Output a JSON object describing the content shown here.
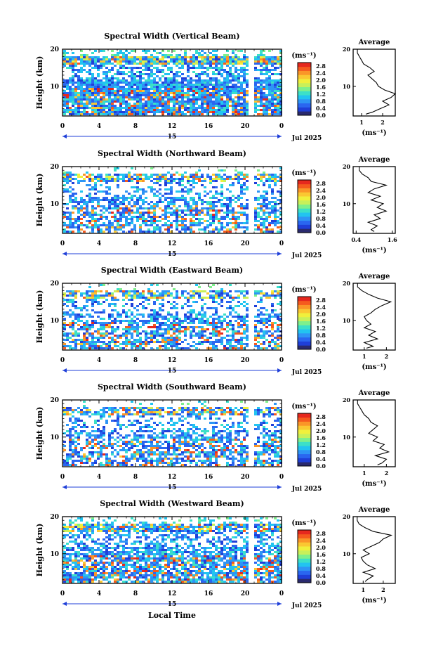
{
  "figure": {
    "unit_label": "(ms⁻¹)",
    "xlabel": "Local Time",
    "date_label": "Jul 2025",
    "day_label": "15",
    "avg_title": "Average",
    "colorbar_ticks": [
      "2.8",
      "2.4",
      "2.0",
      "1.6",
      "1.2",
      "0.8",
      "0.4",
      "0.0"
    ],
    "colorscale": [
      "#2a2a6e",
      "#1f3fd8",
      "#2a66f0",
      "#2e95f5",
      "#22c4f0",
      "#3ce0c8",
      "#7ef08c",
      "#c8f05a",
      "#f0f03c",
      "#fac832",
      "#fa9628",
      "#f55a1e",
      "#e6281e"
    ]
  },
  "chart_data": [
    {
      "type": "heatmap",
      "title": "Spectral Width (Vertical Beam)",
      "ylabel": "Height (km)",
      "x_ticks": [
        "0",
        "4",
        "8",
        "12",
        "16",
        "20",
        "0"
      ],
      "y_ticks": [
        "10",
        "20"
      ],
      "xlim": [
        0,
        24
      ],
      "ylim": [
        2,
        20
      ],
      "clim": [
        0,
        3.0
      ],
      "average": {
        "xlabel": "(ms⁻¹)",
        "x_ticks": [
          "1",
          "2"
        ],
        "xlim": [
          0.6,
          2.6
        ],
        "profile": [
          [
            2.5,
            1.2
          ],
          [
            3,
            1.5
          ],
          [
            4,
            1.9
          ],
          [
            5,
            2.3
          ],
          [
            6,
            2.0
          ],
          [
            7,
            2.4
          ],
          [
            8,
            2.6
          ],
          [
            9,
            2.1
          ],
          [
            10,
            1.8
          ],
          [
            11,
            1.7
          ],
          [
            12,
            1.5
          ],
          [
            13,
            1.3
          ],
          [
            14,
            1.6
          ],
          [
            15,
            1.4
          ],
          [
            16,
            1.1
          ],
          [
            17,
            1.0
          ],
          [
            18,
            0.9
          ],
          [
            19,
            0.8
          ],
          [
            20,
            0.8
          ]
        ]
      }
    },
    {
      "type": "heatmap",
      "title": "Spectral Width (Northward Beam)",
      "ylabel": "Height (km)",
      "x_ticks": [
        "0",
        "4",
        "8",
        "12",
        "16",
        "20",
        "0"
      ],
      "y_ticks": [
        "10",
        "20"
      ],
      "xlim": [
        0,
        24
      ],
      "ylim": [
        2,
        20
      ],
      "clim": [
        0,
        3.0
      ],
      "average": {
        "xlabel": "(ms⁻¹)",
        "x_ticks": [
          "0.4",
          "1.6"
        ],
        "xlim": [
          0.3,
          1.7
        ],
        "profile": [
          [
            2.5,
            1.0
          ],
          [
            3,
            0.9
          ],
          [
            4,
            1.1
          ],
          [
            5,
            0.8
          ],
          [
            6,
            1.2
          ],
          [
            7,
            1.0
          ],
          [
            8,
            1.4
          ],
          [
            9,
            1.1
          ],
          [
            10,
            1.3
          ],
          [
            11,
            0.9
          ],
          [
            12,
            1.2
          ],
          [
            13,
            0.8
          ],
          [
            14,
            1.0
          ],
          [
            15,
            1.4
          ],
          [
            16,
            0.9
          ],
          [
            17,
            0.8
          ],
          [
            18,
            0.6
          ],
          [
            19,
            0.5
          ],
          [
            20,
            0.5
          ]
        ]
      }
    },
    {
      "type": "heatmap",
      "title": "Spectral Width (Eastward Beam)",
      "ylabel": "Height (km)",
      "x_ticks": [
        "0",
        "4",
        "8",
        "12",
        "16",
        "20",
        "0"
      ],
      "y_ticks": [
        "10",
        "20"
      ],
      "xlim": [
        0,
        24
      ],
      "ylim": [
        2,
        20
      ],
      "clim": [
        0,
        3.0
      ],
      "average": {
        "xlabel": "(ms⁻¹)",
        "x_ticks": [
          "1",
          "2"
        ],
        "xlim": [
          0.5,
          2.4
        ],
        "profile": [
          [
            2.5,
            1.1
          ],
          [
            3,
            1.4
          ],
          [
            4,
            1.0
          ],
          [
            5,
            1.6
          ],
          [
            6,
            1.2
          ],
          [
            7,
            1.5
          ],
          [
            8,
            1.0
          ],
          [
            9,
            1.3
          ],
          [
            10,
            1.1
          ],
          [
            11,
            1.0
          ],
          [
            12,
            1.3
          ],
          [
            13,
            1.5
          ],
          [
            14,
            1.8
          ],
          [
            15,
            2.2
          ],
          [
            16,
            1.6
          ],
          [
            17,
            1.2
          ],
          [
            18,
            0.9
          ],
          [
            19,
            0.7
          ],
          [
            20,
            0.7
          ]
        ]
      }
    },
    {
      "type": "heatmap",
      "title": "Spectral Width (Southward Beam)",
      "ylabel": "Height (km)",
      "x_ticks": [
        "0",
        "4",
        "8",
        "12",
        "16",
        "20",
        "0"
      ],
      "y_ticks": [
        "10",
        "20"
      ],
      "xlim": [
        0,
        24
      ],
      "ylim": [
        2,
        20
      ],
      "clim": [
        0,
        3.0
      ],
      "average": {
        "xlabel": "(ms⁻¹)",
        "x_ticks": [
          "1",
          "2"
        ],
        "xlim": [
          0.5,
          2.4
        ],
        "profile": [
          [
            2.5,
            1.6
          ],
          [
            3,
            1.8
          ],
          [
            4,
            2.0
          ],
          [
            5,
            1.5
          ],
          [
            6,
            2.1
          ],
          [
            7,
            1.7
          ],
          [
            8,
            1.9
          ],
          [
            9,
            1.4
          ],
          [
            10,
            1.6
          ],
          [
            11,
            1.2
          ],
          [
            12,
            1.4
          ],
          [
            13,
            1.6
          ],
          [
            14,
            1.3
          ],
          [
            15,
            1.2
          ],
          [
            16,
            1.0
          ],
          [
            17,
            0.9
          ],
          [
            18,
            0.8
          ],
          [
            19,
            0.7
          ],
          [
            20,
            0.7
          ]
        ]
      }
    },
    {
      "type": "heatmap",
      "title": "Spectral Width (Westward Beam)",
      "ylabel": "Height (km)",
      "x_ticks": [
        "0",
        "4",
        "8",
        "12",
        "16",
        "20",
        "0"
      ],
      "y_ticks": [
        "10",
        "20"
      ],
      "xlim": [
        0,
        24
      ],
      "ylim": [
        2,
        20
      ],
      "clim": [
        0,
        3.0
      ],
      "average": {
        "xlabel": "(ms⁻¹)",
        "x_ticks": [
          "1",
          "2"
        ],
        "xlim": [
          0.5,
          2.6
        ],
        "profile": [
          [
            2.5,
            1.1
          ],
          [
            3,
            1.2
          ],
          [
            4,
            1.5
          ],
          [
            5,
            1.0
          ],
          [
            6,
            1.6
          ],
          [
            7,
            1.2
          ],
          [
            8,
            1.0
          ],
          [
            9,
            0.9
          ],
          [
            10,
            1.3
          ],
          [
            11,
            1.0
          ],
          [
            12,
            1.4
          ],
          [
            13,
            1.8
          ],
          [
            14,
            2.0
          ],
          [
            15,
            2.4
          ],
          [
            16,
            1.5
          ],
          [
            17,
            1.1
          ],
          [
            18,
            0.8
          ],
          [
            19,
            0.7
          ],
          [
            20,
            0.7
          ]
        ]
      }
    }
  ]
}
